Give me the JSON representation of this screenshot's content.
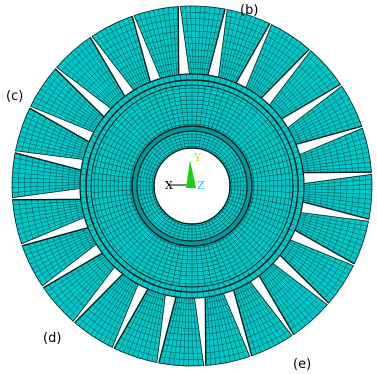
{
  "labels": {
    "b": "(b)",
    "c": "(c)",
    "d": "(d)",
    "e": "(e)"
  },
  "triad": {
    "x": "X",
    "y": "Y",
    "z": "Z"
  },
  "colors": {
    "mesh_fill": "#00c8c8",
    "mesh_fill_dark": "#009a9a",
    "mesh_line": "#0a1a1a",
    "background": "#ffffff",
    "triad_x": "#000000",
    "triad_y": "#d8d800",
    "triad_z": "#00c8ff",
    "triad_cone": "#19d019"
  },
  "model": {
    "blade_count": 24,
    "ring_band_count": 4
  }
}
